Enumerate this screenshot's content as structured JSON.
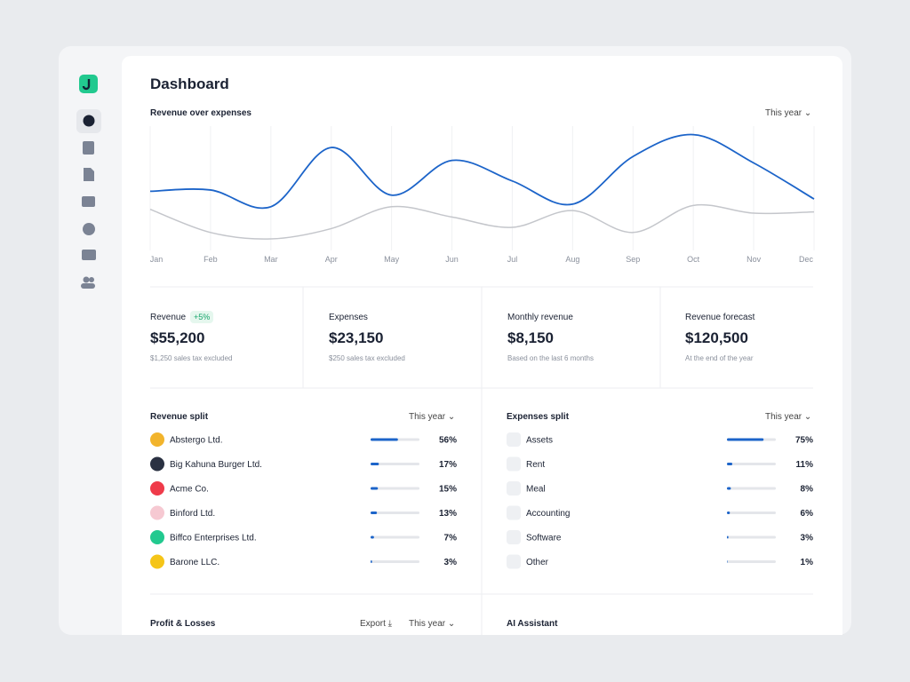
{
  "header": {
    "title": "Dashboard"
  },
  "chart_data": {
    "type": "line",
    "title": "Revenue over expenses",
    "period": "This year",
    "categories": [
      "Jan",
      "Feb",
      "Mar",
      "Apr",
      "May",
      "Jun",
      "Jul",
      "Aug",
      "Sep",
      "Oct",
      "Nov",
      "Dec"
    ],
    "series": [
      {
        "color": "#1c64c9",
        "values": [
          48,
          49,
          36,
          82,
          45,
          72,
          56,
          38,
          75,
          92,
          70,
          42
        ]
      },
      {
        "color": "#c4c6cb",
        "values": [
          34,
          16,
          11,
          19,
          36,
          28,
          20,
          33,
          16,
          37,
          31,
          32
        ]
      }
    ]
  },
  "kpis": [
    {
      "label": "Revenue",
      "badge": "+5%",
      "value": "$55,200",
      "note": "$1,250 sales tax excluded"
    },
    {
      "label": "Expenses",
      "value": "$23,150",
      "note": "$250 sales tax excluded"
    },
    {
      "label": "Monthly revenue",
      "value": "$8,150",
      "note": "Based on the last 6 months"
    },
    {
      "label": "Revenue forecast",
      "value": "$120,500",
      "note": "At the end of the year"
    }
  ],
  "revenue_split": {
    "title": "Revenue split",
    "period": "This year",
    "names": [
      "Abstergo Ltd.",
      "Big Kahuna Burger Ltd.",
      "Acme Co.",
      "Binford Ltd.",
      "Biffco Enterprises Ltd.",
      "Barone LLC."
    ],
    "values": [
      56,
      17,
      15,
      13,
      7,
      3
    ],
    "value_labels": [
      "56%",
      "17%",
      "15%",
      "13%",
      "7%",
      "3%"
    ]
  },
  "expenses_split": {
    "title": "Expenses split",
    "period": "This year",
    "names": [
      "Assets",
      "Rent",
      "Meal",
      "Accounting",
      "Software",
      "Other"
    ],
    "values": [
      75,
      11,
      8,
      6,
      3,
      1
    ],
    "value_labels": [
      "75%",
      "11%",
      "8%",
      "6%",
      "3%",
      "1%"
    ]
  },
  "profit_losses": {
    "title": "Profit & Losses",
    "export": "Export",
    "period": "This year"
  },
  "ai_assistant": {
    "title": "AI Assistant"
  }
}
